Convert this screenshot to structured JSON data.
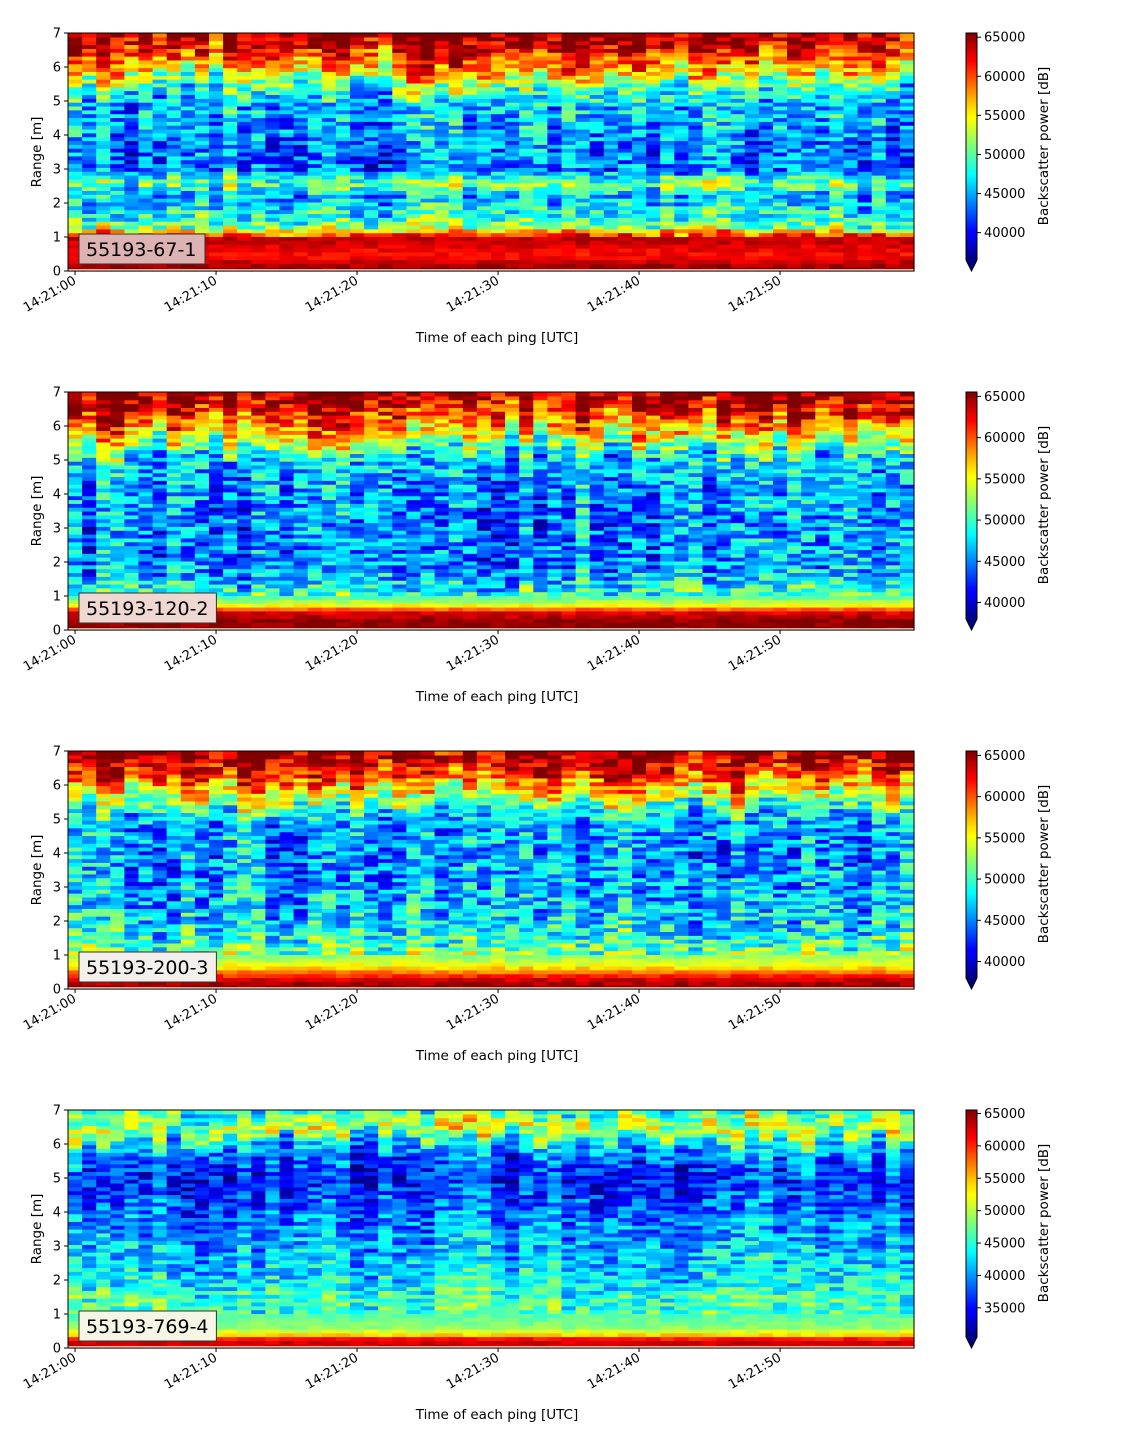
{
  "chart_data": [
    {
      "type": "heatmap",
      "panel_label": "55193-67-1",
      "xlabel": "Time of each ping [UTC]",
      "ylabel": "Range [m]",
      "x_ticks": [
        "14:21:00",
        "14:21:10",
        "14:21:20",
        "14:21:30",
        "14:21:40",
        "14:21:50"
      ],
      "xlim_seconds": [
        -0.5,
        59.5
      ],
      "ylim": [
        0,
        7
      ],
      "y_ticks": [
        "0",
        "1",
        "2",
        "3",
        "4",
        "5",
        "6",
        "7"
      ],
      "colorbar_label": "Backscatter power [dB]",
      "colorbar_ticks": [
        "40000",
        "45000",
        "50000",
        "55000",
        "60000",
        "65000"
      ],
      "clim": [
        36500,
        65535
      ],
      "colormap": "jet",
      "label_box_color": "#dcb2b2",
      "profile": [
        [
          0.0,
          65535
        ],
        [
          0.22,
          64000
        ],
        [
          0.45,
          61500
        ],
        [
          0.7,
          62500
        ],
        [
          0.95,
          64000
        ],
        [
          1.12,
          59000
        ],
        [
          1.3,
          51500
        ],
        [
          1.7,
          48000
        ],
        [
          2.2,
          45500
        ],
        [
          2.6,
          51000
        ],
        [
          3.0,
          43500
        ],
        [
          3.5,
          43500
        ],
        [
          4.0,
          45000
        ],
        [
          4.5,
          45500
        ],
        [
          5.0,
          45500
        ],
        [
          5.5,
          50500
        ],
        [
          6.0,
          57500
        ],
        [
          6.4,
          61000
        ],
        [
          6.8,
          64500
        ],
        [
          7.0,
          65535
        ]
      ]
    },
    {
      "type": "heatmap",
      "panel_label": "55193-120-2",
      "xlabel": "Time of each ping [UTC]",
      "ylabel": "Range [m]",
      "x_ticks": [
        "14:21:00",
        "14:21:10",
        "14:21:20",
        "14:21:30",
        "14:21:40",
        "14:21:50"
      ],
      "xlim_seconds": [
        -0.5,
        59.5
      ],
      "ylim": [
        0,
        7
      ],
      "y_ticks": [
        "0",
        "1",
        "2",
        "3",
        "4",
        "5",
        "6",
        "7"
      ],
      "colorbar_label": "Backscatter power [dB]",
      "colorbar_ticks": [
        "40000",
        "45000",
        "50000",
        "55000",
        "60000",
        "65000"
      ],
      "clim": [
        38000,
        65535
      ],
      "colormap": "jet",
      "label_box_color": "#f0d8d2",
      "profile": [
        [
          0.0,
          65535
        ],
        [
          0.3,
          65000
        ],
        [
          0.55,
          62500
        ],
        [
          0.7,
          55500
        ],
        [
          0.95,
          51000
        ],
        [
          1.5,
          47000
        ],
        [
          2.0,
          45500
        ],
        [
          3.0,
          45000
        ],
        [
          4.0,
          45500
        ],
        [
          5.0,
          47000
        ],
        [
          5.5,
          53000
        ],
        [
          6.0,
          58500
        ],
        [
          6.5,
          62500
        ],
        [
          7.0,
          65535
        ]
      ]
    },
    {
      "type": "heatmap",
      "panel_label": "55193-200-3",
      "xlabel": "Time of each ping [UTC]",
      "ylabel": "Range [m]",
      "x_ticks": [
        "14:21:00",
        "14:21:10",
        "14:21:20",
        "14:21:30",
        "14:21:40",
        "14:21:50"
      ],
      "xlim_seconds": [
        -0.5,
        59.5
      ],
      "ylim": [
        0,
        7
      ],
      "y_ticks": [
        "0",
        "1",
        "2",
        "3",
        "4",
        "5",
        "6",
        "7"
      ],
      "colorbar_label": "Backscatter power [dB]",
      "colorbar_ticks": [
        "40000",
        "45000",
        "50000",
        "55000",
        "60000",
        "65000"
      ],
      "clim": [
        38000,
        65535
      ],
      "colormap": "jet",
      "label_box_color": "#f3f0ec",
      "profile": [
        [
          0.0,
          65535
        ],
        [
          0.25,
          64000
        ],
        [
          0.45,
          60000
        ],
        [
          0.7,
          55000
        ],
        [
          1.0,
          52000
        ],
        [
          1.5,
          49500
        ],
        [
          2.0,
          47500
        ],
        [
          3.0,
          46000
        ],
        [
          4.0,
          45500
        ],
        [
          5.0,
          46500
        ],
        [
          5.5,
          51000
        ],
        [
          6.0,
          57500
        ],
        [
          6.5,
          62500
        ],
        [
          7.0,
          65535
        ]
      ]
    },
    {
      "type": "heatmap",
      "panel_label": "55193-769-4",
      "xlabel": "Time of each ping [UTC]",
      "ylabel": "Range [m]",
      "x_ticks": [
        "14:21:00",
        "14:21:10",
        "14:21:20",
        "14:21:30",
        "14:21:40",
        "14:21:50"
      ],
      "xlim_seconds": [
        -0.5,
        59.5
      ],
      "ylim": [
        0,
        7
      ],
      "y_ticks": [
        "0",
        "1",
        "2",
        "3",
        "4",
        "5",
        "6",
        "7"
      ],
      "colorbar_label": "Backscatter power [dB]",
      "colorbar_ticks": [
        "35000",
        "40000",
        "45000",
        "50000",
        "55000",
        "60000",
        "65000"
      ],
      "clim": [
        30500,
        65535
      ],
      "colormap": "jet",
      "label_box_color": "#f5f6e6",
      "profile": [
        [
          0.0,
          65535
        ],
        [
          0.12,
          60000
        ],
        [
          0.22,
          65535
        ],
        [
          0.35,
          55000
        ],
        [
          0.6,
          48500
        ],
        [
          1.0,
          46500
        ],
        [
          1.5,
          45500
        ],
        [
          2.0,
          43000
        ],
        [
          3.0,
          41000
        ],
        [
          4.0,
          38500
        ],
        [
          5.0,
          35500
        ],
        [
          5.5,
          38000
        ],
        [
          6.0,
          42000
        ],
        [
          6.4,
          52000
        ],
        [
          6.8,
          47000
        ],
        [
          7.0,
          45000
        ]
      ]
    }
  ]
}
